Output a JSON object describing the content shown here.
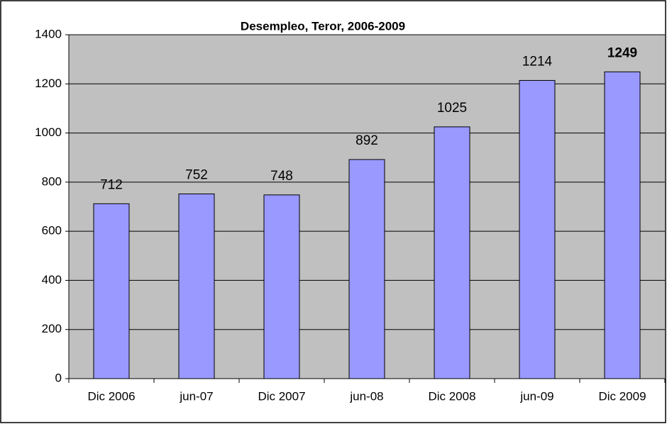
{
  "chart_data": {
    "type": "bar",
    "title": "Desempleo, Teror, 2006-2009",
    "categories": [
      "Dic 2006",
      "jun-07",
      "Dic 2007",
      "jun-08",
      "Dic 2008",
      "jun-09",
      "Dic 2009"
    ],
    "values": [
      712,
      752,
      748,
      892,
      1025,
      1214,
      1249
    ],
    "color": "#9999ff",
    "ylim": [
      0,
      1400
    ],
    "yticks": [
      0,
      200,
      400,
      600,
      800,
      1000,
      1200,
      1400
    ],
    "grid": true
  }
}
